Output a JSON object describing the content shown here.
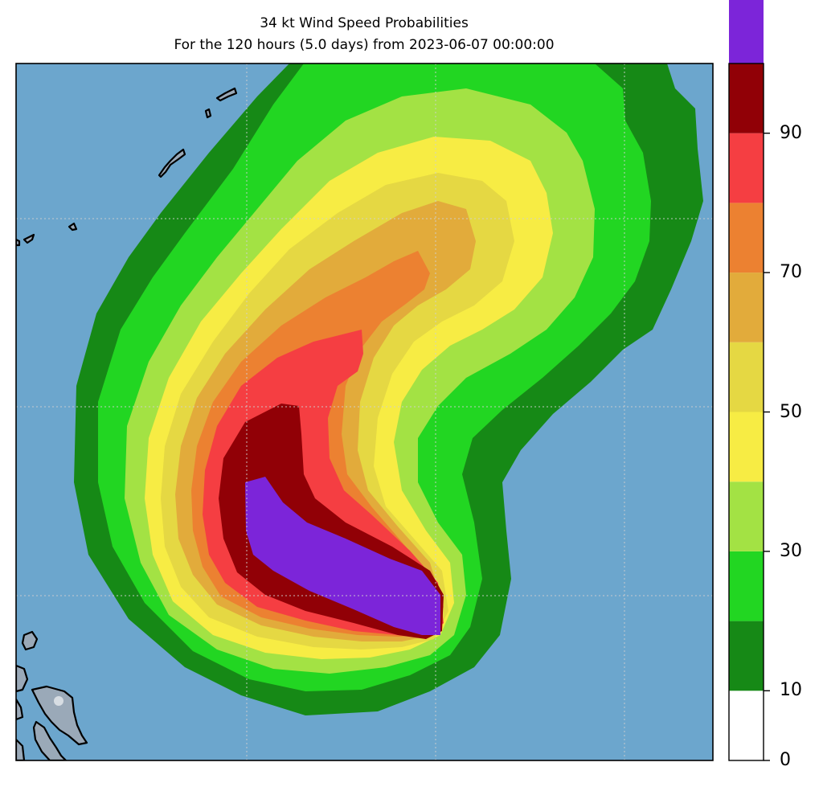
{
  "title": "34 kt Wind Speed Probabilities",
  "subtitle": "For the 120 hours (5.0 days) from 2023-06-07 00:00:00",
  "colorbar": {
    "min": 0,
    "max": 100,
    "step": 10,
    "tick_labels": [
      "0",
      "10",
      "30",
      "50",
      "70",
      "90"
    ],
    "tick_values": [
      0,
      10,
      30,
      50,
      70,
      90
    ],
    "colors": [
      "#ffffff",
      "#168916",
      "#22d622",
      "#a3e244",
      "#f7ec44",
      "#e5d843",
      "#e2ab3b",
      "#ec8131",
      "#f53e42",
      "#910006",
      "#7c25d9"
    ]
  },
  "map": {
    "ocean_color": "#6ca6cd",
    "land_color": "#9aa9b8",
    "grid": true
  },
  "chart_data": {
    "type": "heatmap",
    "title": "34 kt Wind Speed Probabilities",
    "subtitle": "For the 120 hours (5.0 days) from 2023-06-07 00:00:00",
    "variable": "34 kt Wind Speed Probabilities",
    "levels": [
      0,
      10,
      20,
      30,
      40,
      50,
      60,
      70,
      80,
      90,
      100
    ],
    "colorbar_ticks": [
      0,
      10,
      30,
      50,
      70,
      90
    ],
    "max_probability_band": [
      90,
      100
    ]
  }
}
